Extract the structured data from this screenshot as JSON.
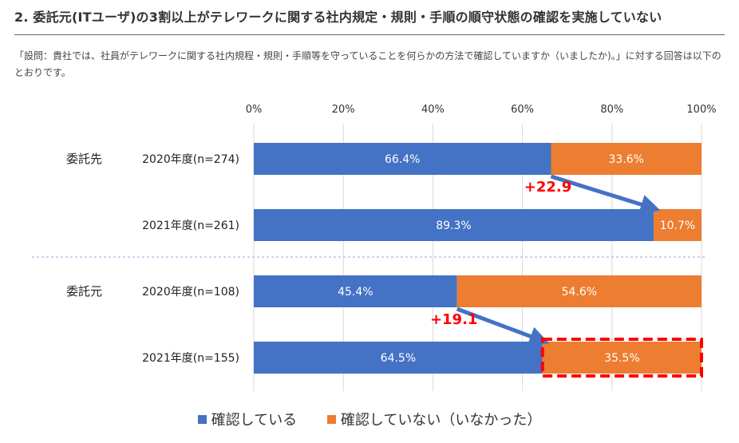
{
  "header": {
    "title": "2. 委託元(ITユーザ)の3割以上がテレワークに関する社内規定・規則・手順の順守状態の確認を実施していない",
    "note": "「設問：貴社では、社員がテレワークに関する社内規程・規則・手順等を守っていることを何らかの方法で確認していますか（いましたか)。」に対する回答は以下のとおりです。"
  },
  "chart_data": {
    "type": "bar",
    "orientation": "horizontal",
    "stacked": "percent",
    "xlim": [
      0,
      100
    ],
    "x_ticks": [
      "0%",
      "20%",
      "40%",
      "60%",
      "80%",
      "100%"
    ],
    "groups": [
      {
        "label": "委託先",
        "rows": [
          {
            "label": "2020年度(n=274)",
            "values": [
              66.4,
              33.6
            ],
            "value_labels": [
              "66.4%",
              "33.6%"
            ]
          },
          {
            "label": "2021年度(n=261)",
            "values": [
              89.3,
              10.7
            ],
            "value_labels": [
              "89.3%",
              "10.7%"
            ]
          }
        ],
        "change_label": "+22.9"
      },
      {
        "label": "委託元",
        "rows": [
          {
            "label": "2020年度(n=108)",
            "values": [
              45.4,
              54.6
            ],
            "value_labels": [
              "45.4%",
              "54.6%"
            ]
          },
          {
            "label": "2021年度(n=155)",
            "values": [
              64.5,
              35.5
            ],
            "value_labels": [
              "64.5%",
              "35.5%"
            ]
          }
        ],
        "change_label": "+19.1",
        "highlight": "2021年度(n=155) 確認していない"
      }
    ],
    "series": [
      {
        "name": "確認している",
        "color": "#4472C4"
      },
      {
        "name": "確認していない（いなかった）",
        "color": "#ED7D31"
      }
    ],
    "annotation_color": "#FF0000",
    "arrow_color": "#4472C4",
    "grid": true,
    "legend_position": "bottom"
  }
}
